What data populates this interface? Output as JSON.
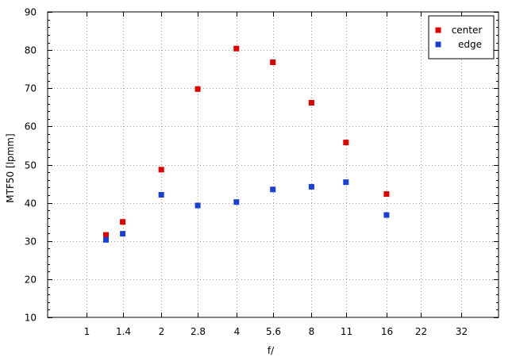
{
  "chart_data": {
    "type": "scatter",
    "title": "",
    "xlabel": "f/",
    "ylabel": "MTF50 [lpmm]",
    "x_scale": "log2",
    "x_ticks": [
      1,
      1.4,
      2,
      2.8,
      4,
      5.6,
      8,
      11,
      16,
      22,
      32
    ],
    "x_tick_labels": [
      "1",
      "1.4",
      "2",
      "2.8",
      "4",
      "5.6",
      "8",
      "11",
      "16",
      "22",
      "32"
    ],
    "xlim": [
      0.7,
      45
    ],
    "ylim": [
      10,
      90
    ],
    "y_ticks": [
      10,
      20,
      30,
      40,
      50,
      60,
      70,
      80,
      90
    ],
    "y_tick_labels": [
      "10",
      "20",
      "30",
      "40",
      "50",
      "60",
      "70",
      "80",
      "90"
    ],
    "grid": true,
    "legend_position": "top-right",
    "series": [
      {
        "name": "center",
        "color": "#e00000",
        "x": [
          1.2,
          1.4,
          2,
          2.8,
          4,
          5.6,
          8,
          11,
          16
        ],
        "y": [
          31.6,
          35.0,
          48.7,
          69.8,
          80.4,
          76.8,
          66.2,
          55.8,
          42.3
        ]
      },
      {
        "name": "edge",
        "color": "#1a3fd9",
        "x": [
          1.2,
          1.4,
          2,
          2.8,
          4,
          5.6,
          8,
          11,
          16
        ],
        "y": [
          30.3,
          31.9,
          42.1,
          39.3,
          40.2,
          43.5,
          44.2,
          45.4,
          36.8
        ]
      }
    ]
  }
}
